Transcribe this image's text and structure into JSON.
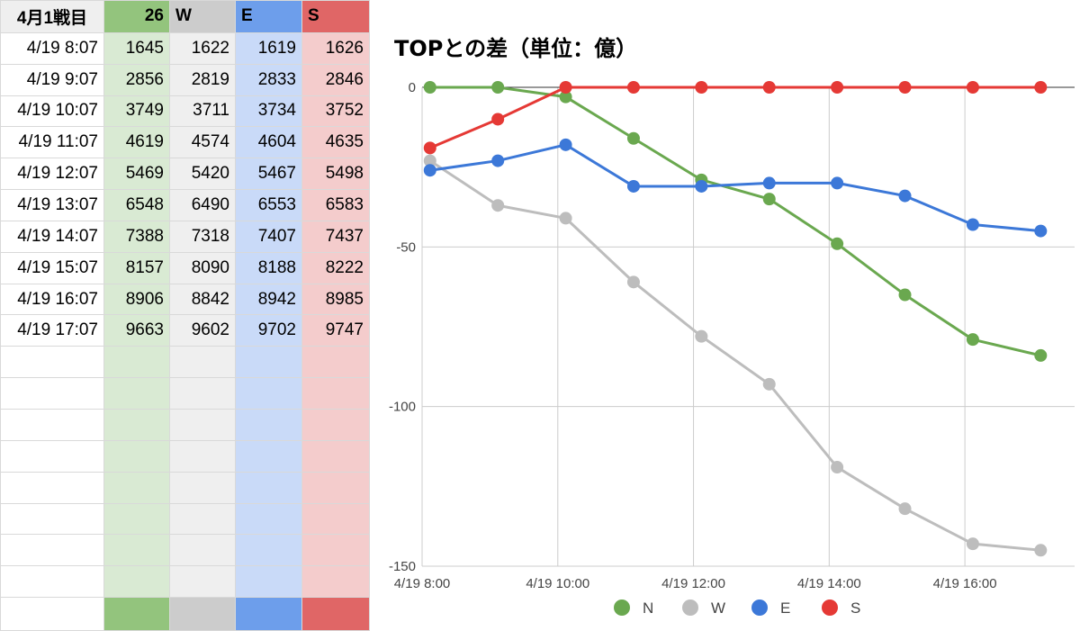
{
  "sheet": {
    "headers": [
      "4月1戦目",
      "26",
      "W",
      "E",
      "S"
    ],
    "rows": [
      [
        "4/19 8:07",
        "1645",
        "1622",
        "1619",
        "1626"
      ],
      [
        "4/19 9:07",
        "2856",
        "2819",
        "2833",
        "2846"
      ],
      [
        "4/19 10:07",
        "3749",
        "3711",
        "3734",
        "3752"
      ],
      [
        "4/19 11:07",
        "4619",
        "4574",
        "4604",
        "4635"
      ],
      [
        "4/19 12:07",
        "5469",
        "5420",
        "5467",
        "5498"
      ],
      [
        "4/19 13:07",
        "6548",
        "6490",
        "6553",
        "6583"
      ],
      [
        "4/19 14:07",
        "7388",
        "7318",
        "7407",
        "7437"
      ],
      [
        "4/19 15:07",
        "8157",
        "8090",
        "8188",
        "8222"
      ],
      [
        "4/19 16:07",
        "8906",
        "8842",
        "8942",
        "8985"
      ],
      [
        "4/19 17:07",
        "9663",
        "9602",
        "9702",
        "9747"
      ]
    ],
    "empty_rows": 8
  },
  "chart_data": {
    "type": "line",
    "title": "TOPとの差（単位：億）",
    "x": [
      "4/19 8:07",
      "4/19 9:07",
      "4/19 10:07",
      "4/19 11:07",
      "4/19 12:07",
      "4/19 13:07",
      "4/19 14:07",
      "4/19 15:07",
      "4/19 16:07",
      "4/19 17:07"
    ],
    "x_range": [
      "4/19 8:00",
      "4/19 17:37"
    ],
    "x_ticks": [
      "4/19 8:00",
      "4/19 10:00",
      "4/19 12:00",
      "4/19 14:00",
      "4/19 16:00"
    ],
    "ylim": [
      -150,
      0
    ],
    "y_ticks": [
      0,
      -50,
      -100,
      -150
    ],
    "grid": true,
    "legend_position": "bottom",
    "series": [
      {
        "name": "N",
        "color": "#6aa84f",
        "values": [
          0,
          0,
          -3,
          -16,
          -29,
          -35,
          -49,
          -65,
          -79,
          -84
        ]
      },
      {
        "name": "W",
        "color": "#bdbdbd",
        "values": [
          -23,
          -37,
          -41,
          -61,
          -78,
          -93,
          -119,
          -132,
          -143,
          -145
        ]
      },
      {
        "name": "E",
        "color": "#3c78d8",
        "values": [
          -26,
          -23,
          -18,
          -31,
          -31,
          -30,
          -30,
          -34,
          -43,
          -45
        ]
      },
      {
        "name": "S",
        "color": "#e53935",
        "values": [
          -19,
          -10,
          0,
          0,
          0,
          0,
          0,
          0,
          0,
          0
        ]
      }
    ]
  }
}
